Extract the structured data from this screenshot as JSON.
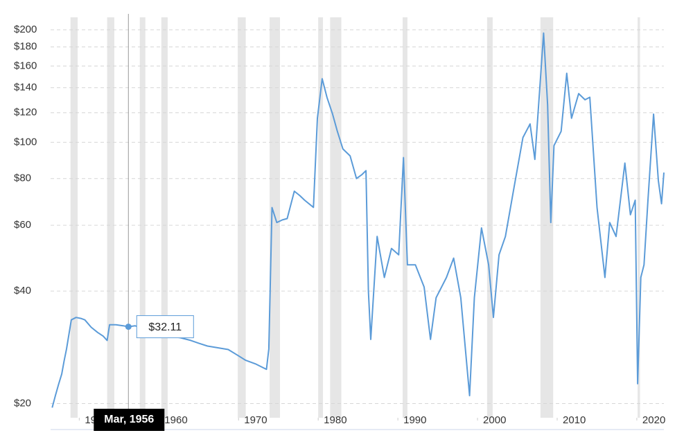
{
  "chart_data": {
    "type": "line",
    "log_y": true,
    "grid": true,
    "xlim": [
      1946.4,
      2023.4
    ],
    "ylim": [
      18.8,
      216
    ],
    "xticks": [
      1950,
      1960,
      1970,
      1980,
      1990,
      2000,
      2010,
      2020
    ],
    "yticks": [
      {
        "value": 20,
        "label": "$20"
      },
      {
        "value": 40,
        "label": "$40"
      },
      {
        "value": 60,
        "label": "$60"
      },
      {
        "value": 80,
        "label": "$80"
      },
      {
        "value": 100,
        "label": "$100"
      },
      {
        "value": 120,
        "label": "$120"
      },
      {
        "value": 140,
        "label": "$140"
      },
      {
        "value": 160,
        "label": "$160"
      },
      {
        "value": 180,
        "label": "$180"
      },
      {
        "value": 200,
        "label": "$200"
      }
    ],
    "recession_color": "#e6e6e6",
    "recessions": [
      [
        1948.9,
        1949.8
      ],
      [
        1953.5,
        1954.4
      ],
      [
        1957.6,
        1958.3
      ],
      [
        1960.3,
        1961.1
      ],
      [
        1969.9,
        1970.9
      ],
      [
        1973.9,
        1975.2
      ],
      [
        1980.0,
        1980.6
      ],
      [
        1981.5,
        1982.9
      ],
      [
        1990.6,
        1991.2
      ],
      [
        2001.2,
        2001.9
      ],
      [
        2007.9,
        2009.5
      ],
      [
        2020.1,
        2020.4
      ]
    ],
    "series": [
      {
        "color": "#5b9bd8",
        "x": [
          1946.6,
          1947.0,
          1947.4,
          1947.8,
          1948.1,
          1948.4,
          1949.0,
          1949.6,
          1950.2,
          1950.7,
          1951.5,
          1952.3,
          1953.0,
          1953.5,
          1953.8,
          1954.6,
          1955.5,
          1956.17,
          1957.0,
          1957.6,
          1958.5,
          1959.5,
          1960.5,
          1961.5,
          1962.7,
          1964.0,
          1965.0,
          1966.1,
          1967.4,
          1968.7,
          1969.8,
          1970.9,
          1972.2,
          1973.5,
          1973.8,
          1974.2,
          1974.8,
          1975.5,
          1976.1,
          1977.0,
          1977.7,
          1978.3,
          1979.4,
          1979.9,
          1980.5,
          1981.1,
          1981.8,
          1982.4,
          1983.1,
          1984.0,
          1984.8,
          1985.5,
          1986.0,
          1986.3,
          1986.6,
          1987.4,
          1988.3,
          1989.2,
          1990.1,
          1990.7,
          1991.2,
          1992.2,
          1993.3,
          1994.1,
          1994.8,
          1996.1,
          1997.0,
          1997.9,
          1999.0,
          1999.6,
          2000.5,
          2001.4,
          2002.0,
          2002.7,
          2003.5,
          2004.6,
          2005.7,
          2006.6,
          2007.2,
          2008.3,
          2008.8,
          2009.2,
          2009.6,
          2010.5,
          2011.2,
          2011.8,
          2012.7,
          2013.5,
          2014.1,
          2015.0,
          2016.0,
          2016.6,
          2017.4,
          2018.5,
          2019.2,
          2019.8,
          2020.1,
          2020.5,
          2020.9,
          2021.4,
          2022.1,
          2022.7,
          2023.1,
          2023.4
        ],
        "values": [
          19.5,
          21,
          22.5,
          24,
          26,
          28,
          33.5,
          34,
          33.8,
          33.5,
          32,
          31,
          30.3,
          29.5,
          32.5,
          32.5,
          32.3,
          32.11,
          32.3,
          32,
          31.2,
          30.8,
          30.5,
          30.3,
          30,
          29.5,
          29,
          28.5,
          28.2,
          27.9,
          27,
          26.1,
          25.5,
          24.7,
          28,
          66.9,
          61,
          62,
          62.5,
          74,
          72,
          70,
          67,
          116,
          148,
          132,
          119,
          107,
          96,
          92,
          80,
          82,
          84,
          40,
          29.7,
          56,
          43.5,
          52,
          50,
          91,
          47,
          47,
          41,
          29.7,
          38.4,
          43.5,
          49,
          38.4,
          21,
          38.4,
          59,
          47,
          34,
          50,
          56,
          76,
          103,
          112,
          90,
          196,
          126,
          61,
          98,
          107,
          153,
          116,
          135,
          130,
          132,
          67,
          43.5,
          61,
          56,
          88,
          64,
          70,
          22.6,
          43.5,
          47,
          70,
          119,
          79,
          68.5,
          83
        ]
      }
    ],
    "hover": {
      "x": 1956.17,
      "x_label": "Mar, 1956",
      "value": 32.11,
      "value_label": "$32.11"
    }
  }
}
